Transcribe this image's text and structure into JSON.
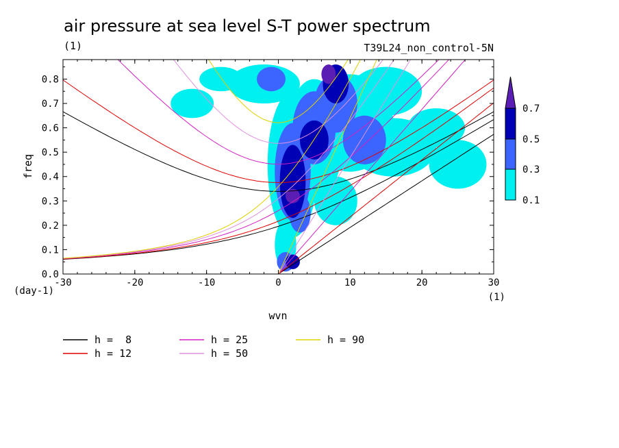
{
  "chart_data": {
    "type": "heatmap",
    "title": "air pressure at sea level S-T power spectrum",
    "title_units": "(1)",
    "subtitle_right": "T39L24_non_control-5N",
    "xlabel": "wvn",
    "ylabel": "freq",
    "x_units": "(1)",
    "y_units": "(day-1)",
    "xlim": [
      -30,
      30
    ],
    "ylim": [
      0,
      0.88
    ],
    "x_ticks": [
      "-30",
      "-20",
      "-10",
      "0",
      "10",
      "20",
      "30"
    ],
    "x_tick_values": [
      -30,
      -20,
      -10,
      0,
      10,
      20,
      30
    ],
    "y_ticks": [
      "0.0",
      "0.1",
      "0.2",
      "0.3",
      "0.4",
      "0.5",
      "0.6",
      "0.7",
      "0.8"
    ],
    "y_tick_values": [
      0,
      0.1,
      0.2,
      0.3,
      0.4,
      0.5,
      0.6,
      0.7,
      0.8
    ],
    "contour_levels": [
      "0.1",
      "0.3",
      "0.5",
      "0.7"
    ],
    "contour_level_values": [
      0.1,
      0.3,
      0.5,
      0.7
    ],
    "level_colors": [
      "#00f0f0",
      "#3c64ff",
      "#0000b4",
      "#5a1eb4"
    ],
    "power_regions": [
      {
        "level": 0.1,
        "blobs": [
          [
            2,
            0.45,
            3.5,
            0.3
          ],
          [
            5,
            0.55,
            4,
            0.25
          ],
          [
            -2,
            0.78,
            5,
            0.08
          ],
          [
            10,
            0.62,
            6,
            0.2
          ],
          [
            16,
            0.52,
            6,
            0.12
          ],
          [
            22,
            0.6,
            4,
            0.08
          ],
          [
            -12,
            0.7,
            3,
            0.06
          ],
          [
            -8,
            0.8,
            3,
            0.05
          ],
          [
            1,
            0.12,
            1.5,
            0.1
          ],
          [
            25,
            0.45,
            4,
            0.1
          ],
          [
            8,
            0.3,
            3,
            0.1
          ],
          [
            15,
            0.75,
            5,
            0.1
          ]
        ]
      },
      {
        "level": 0.3,
        "blobs": [
          [
            2,
            0.42,
            2.5,
            0.2
          ],
          [
            5,
            0.6,
            3,
            0.15
          ],
          [
            8,
            0.7,
            3,
            0.12
          ],
          [
            12,
            0.55,
            3,
            0.1
          ],
          [
            1,
            0.05,
            1.2,
            0.04
          ],
          [
            3,
            0.25,
            1.5,
            0.08
          ],
          [
            -1,
            0.8,
            2,
            0.05
          ]
        ]
      },
      {
        "level": 0.5,
        "blobs": [
          [
            2,
            0.38,
            1.8,
            0.15
          ],
          [
            5,
            0.55,
            2,
            0.08
          ],
          [
            8,
            0.78,
            1.8,
            0.08
          ],
          [
            2,
            0.05,
            1,
            0.03
          ]
        ]
      },
      {
        "level": 0.7,
        "blobs": [
          [
            2,
            0.32,
            1,
            0.03
          ],
          [
            7,
            0.82,
            1,
            0.04
          ]
        ]
      }
    ],
    "series": [
      {
        "name": "h =  8",
        "color": "#000000",
        "equivalent_depth": 8
      },
      {
        "name": "h = 12",
        "color": "#e00000",
        "equivalent_depth": 12
      },
      {
        "name": "h = 25",
        "color": "#d020c0",
        "equivalent_depth": 25
      },
      {
        "name": "h = 50",
        "color": "#e090e0",
        "equivalent_depth": 50
      },
      {
        "name": "h = 90",
        "color": "#e0d000",
        "equivalent_depth": 90
      }
    ],
    "legend_position": "bottom",
    "colorbar_position": "right",
    "grid": false
  }
}
